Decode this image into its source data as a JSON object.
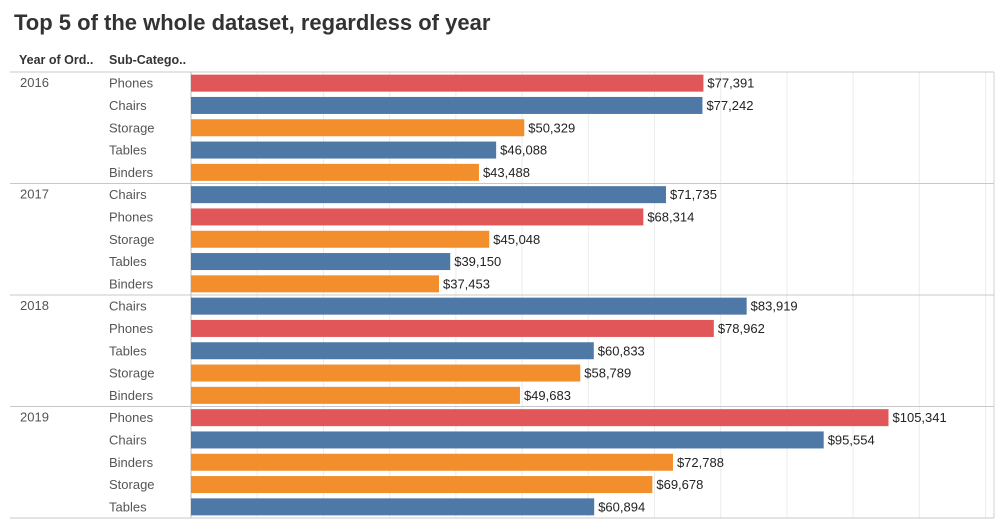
{
  "title": "Top 5 of the whole dataset, regardless of year",
  "headers": {
    "year": "Year of Ord..",
    "subcategory": "Sub-Catego.."
  },
  "colors": {
    "Phones": "#e15759",
    "Chairs": "#4e79a7",
    "Tables": "#4e79a7",
    "Storage": "#f28e2b",
    "Binders": "#f28e2b"
  },
  "chart_data": {
    "type": "bar",
    "orientation": "horizontal",
    "title": "Top 5 of the whole dataset, regardless of year",
    "xlim": [
      0,
      130000
    ],
    "grid": true,
    "groups": [
      {
        "year": "2016",
        "items": [
          {
            "category": "Phones",
            "value": 77391,
            "label": "$77,391"
          },
          {
            "category": "Chairs",
            "value": 77242,
            "label": "$77,242"
          },
          {
            "category": "Storage",
            "value": 50329,
            "label": "$50,329"
          },
          {
            "category": "Tables",
            "value": 46088,
            "label": "$46,088"
          },
          {
            "category": "Binders",
            "value": 43488,
            "label": "$43,488"
          }
        ]
      },
      {
        "year": "2017",
        "items": [
          {
            "category": "Chairs",
            "value": 71735,
            "label": "$71,735"
          },
          {
            "category": "Phones",
            "value": 68314,
            "label": "$68,314"
          },
          {
            "category": "Storage",
            "value": 45048,
            "label": "$45,048"
          },
          {
            "category": "Tables",
            "value": 39150,
            "label": "$39,150"
          },
          {
            "category": "Binders",
            "value": 37453,
            "label": "$37,453"
          }
        ]
      },
      {
        "year": "2018",
        "items": [
          {
            "category": "Chairs",
            "value": 83919,
            "label": "$83,919"
          },
          {
            "category": "Phones",
            "value": 78962,
            "label": "$78,962"
          },
          {
            "category": "Tables",
            "value": 60833,
            "label": "$60,833"
          },
          {
            "category": "Storage",
            "value": 58789,
            "label": "$58,789"
          },
          {
            "category": "Binders",
            "value": 49683,
            "label": "$49,683"
          }
        ]
      },
      {
        "year": "2019",
        "items": [
          {
            "category": "Phones",
            "value": 105341,
            "label": "$105,341"
          },
          {
            "category": "Chairs",
            "value": 95554,
            "label": "$95,554"
          },
          {
            "category": "Binders",
            "value": 72788,
            "label": "$72,788"
          },
          {
            "category": "Storage",
            "value": 69678,
            "label": "$69,678"
          },
          {
            "category": "Tables",
            "value": 60894,
            "label": "$60,894"
          }
        ]
      }
    ]
  }
}
